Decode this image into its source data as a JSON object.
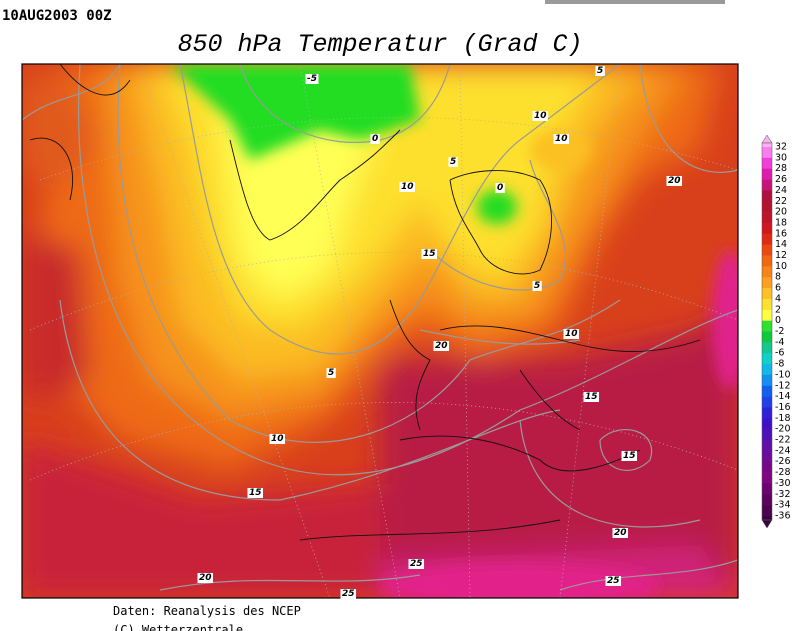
{
  "header": {
    "date": "10AUG2003 00Z",
    "title": "850 hPa Temperatur (Grad C)"
  },
  "colorbar": {
    "labels": [
      "32",
      "30",
      "28",
      "26",
      "24",
      "22",
      "20",
      "18",
      "16",
      "14",
      "12",
      "10",
      "8",
      "6",
      "4",
      "2",
      "0",
      "-2",
      "-4",
      "-6",
      "-8",
      "-10",
      "-12",
      "-14",
      "-16",
      "-18",
      "-20",
      "-22",
      "-24",
      "-26",
      "-28",
      "-30",
      "-32",
      "-34",
      "-36"
    ]
  },
  "contour_labels": [
    "-5",
    "0",
    "5",
    "10",
    "10",
    "10",
    "5",
    "0",
    "15",
    "5",
    "10",
    "20",
    "5",
    "10",
    "15",
    "15",
    "15",
    "20",
    "20",
    "20",
    "25",
    "25",
    "25"
  ],
  "footer": {
    "source": "Daten: Reanalysis des NCEP",
    "copyright": "(C) Wetterzentrale"
  }
}
